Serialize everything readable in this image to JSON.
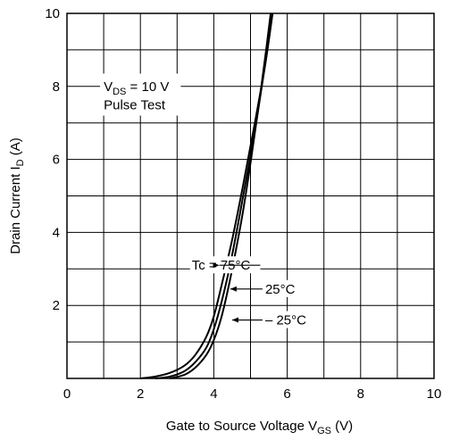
{
  "chart_data": {
    "type": "line",
    "title": "",
    "xlabel": "Gate to Source Voltage V",
    "xlabel_sub": "GS",
    "xlabel_unit": " (V)",
    "ylabel": "Drain Current I",
    "ylabel_sub": "D",
    "ylabel_unit": "  (A)",
    "xlim": [
      0,
      10
    ],
    "ylim": [
      0,
      10
    ],
    "x_ticks": [
      "0",
      "2",
      "4",
      "6",
      "8",
      "10"
    ],
    "y_ticks": [
      "2",
      "4",
      "6",
      "8",
      "10"
    ],
    "grid": true,
    "conditions": {
      "line1_main": "V",
      "line1_sub": "DS",
      "line1_rest": " = 10 V",
      "line2": "Pulse Test"
    },
    "series": [
      {
        "name": "Tc = 75°C",
        "x": [
          2.0,
          2.4,
          2.8,
          3.2,
          3.5,
          3.8,
          4.0,
          4.2,
          4.5,
          4.8,
          5.1,
          5.4,
          5.6
        ],
        "y": [
          0.0,
          0.05,
          0.15,
          0.35,
          0.65,
          1.15,
          1.7,
          2.5,
          3.8,
          5.3,
          6.9,
          8.6,
          10.0
        ]
      },
      {
        "name": "25°C",
        "x": [
          2.4,
          2.8,
          3.2,
          3.5,
          3.8,
          4.0,
          4.2,
          4.4,
          4.6,
          4.8,
          5.0,
          5.2,
          5.4,
          5.6
        ],
        "y": [
          0.0,
          0.05,
          0.2,
          0.45,
          0.85,
          1.35,
          2.05,
          2.9,
          3.9,
          5.0,
          6.1,
          7.3,
          8.6,
          10.0
        ]
      },
      {
        "name": "– 25°C",
        "x": [
          2.8,
          3.2,
          3.5,
          3.8,
          4.0,
          4.2,
          4.4,
          4.6,
          4.8,
          5.0,
          5.2,
          5.4,
          5.55
        ],
        "y": [
          0.0,
          0.1,
          0.3,
          0.65,
          1.05,
          1.65,
          2.5,
          3.5,
          4.6,
          5.9,
          7.3,
          8.8,
          10.0
        ]
      }
    ],
    "series_labels": [
      {
        "text": "Tc = 75°C",
        "x": 3.4,
        "y": 3.1,
        "to_x": 4.15,
        "to_y": 3.1
      },
      {
        "text": "25°C",
        "x": 5.4,
        "y": 2.45,
        "to_x": 4.45,
        "to_y": 2.45
      },
      {
        "text": "– 25°C",
        "x": 5.4,
        "y": 1.6,
        "to_x": 4.5,
        "to_y": 1.6
      }
    ]
  }
}
